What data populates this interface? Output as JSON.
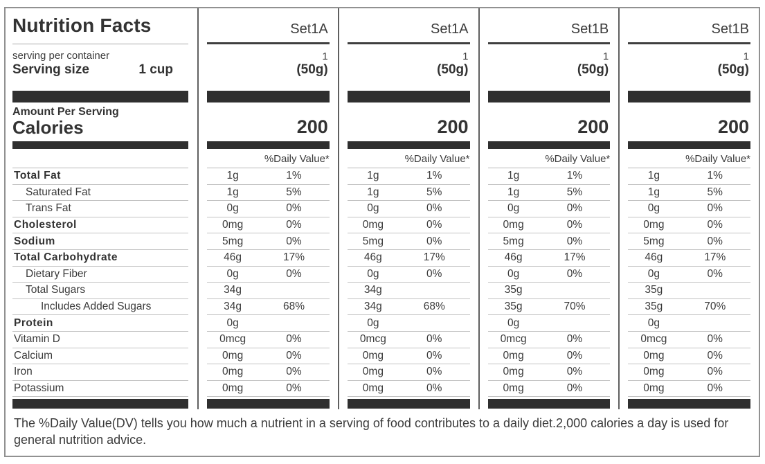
{
  "title": "Nutrition Facts",
  "serving": {
    "per_container_label": "serving per container",
    "size_label": "Serving size",
    "size_value": "1 cup"
  },
  "calories_section": {
    "amount_per_serving_label": "Amount Per Serving",
    "calories_label": "Calories"
  },
  "daily_value_header": "%Daily Value*",
  "row_labels": [
    {
      "label": "Total Fat",
      "style": "bold",
      "indent": 0
    },
    {
      "label": "Saturated  Fat",
      "style": "plain",
      "indent": 1
    },
    {
      "label": "Trans Fat",
      "style": "plain",
      "indent": 1
    },
    {
      "label": "Cholesterol",
      "style": "bold",
      "indent": 0
    },
    {
      "label": "Sodium",
      "style": "bold",
      "indent": 0
    },
    {
      "label": "Total Carbohydrate",
      "style": "bold",
      "indent": 0
    },
    {
      "label": "Dietary Fiber",
      "style": "plain",
      "indent": 1
    },
    {
      "label": "Total Sugars",
      "style": "plain",
      "indent": 1
    },
    {
      "label": "Includes Added Sugars",
      "style": "plain",
      "indent": 2
    },
    {
      "label": "Protein",
      "style": "bold",
      "indent": 0
    },
    {
      "label": "Vitamin D",
      "style": "plain",
      "indent": 0
    },
    {
      "label": "Calcium",
      "style": "plain",
      "indent": 0
    },
    {
      "label": "Iron",
      "style": "plain",
      "indent": 0
    },
    {
      "label": "Potassium",
      "style": "plain",
      "indent": 0
    }
  ],
  "columns": [
    {
      "name": "Set1A",
      "servings": "1",
      "serving_size": "(50g)",
      "calories": "200",
      "cells": [
        {
          "amount": "1g",
          "dv": "1%"
        },
        {
          "amount": "1g",
          "dv": "5%"
        },
        {
          "amount": "0g",
          "dv": "0%"
        },
        {
          "amount": "0mg",
          "dv": "0%"
        },
        {
          "amount": "5mg",
          "dv": "0%"
        },
        {
          "amount": "46g",
          "dv": "17%"
        },
        {
          "amount": "0g",
          "dv": "0%"
        },
        {
          "amount": "34g",
          "dv": ""
        },
        {
          "amount": "34g",
          "dv": "68%"
        },
        {
          "amount": "0g",
          "dv": ""
        },
        {
          "amount": "0mcg",
          "dv": "0%"
        },
        {
          "amount": "0mg",
          "dv": "0%"
        },
        {
          "amount": "0mg",
          "dv": "0%"
        },
        {
          "amount": "0mg",
          "dv": "0%"
        }
      ]
    },
    {
      "name": "Set1A",
      "servings": "1",
      "serving_size": "(50g)",
      "calories": "200",
      "cells": [
        {
          "amount": "1g",
          "dv": "1%"
        },
        {
          "amount": "1g",
          "dv": "5%"
        },
        {
          "amount": "0g",
          "dv": "0%"
        },
        {
          "amount": "0mg",
          "dv": "0%"
        },
        {
          "amount": "5mg",
          "dv": "0%"
        },
        {
          "amount": "46g",
          "dv": "17%"
        },
        {
          "amount": "0g",
          "dv": "0%"
        },
        {
          "amount": "34g",
          "dv": ""
        },
        {
          "amount": "34g",
          "dv": "68%"
        },
        {
          "amount": "0g",
          "dv": ""
        },
        {
          "amount": "0mcg",
          "dv": "0%"
        },
        {
          "amount": "0mg",
          "dv": "0%"
        },
        {
          "amount": "0mg",
          "dv": "0%"
        },
        {
          "amount": "0mg",
          "dv": "0%"
        }
      ]
    },
    {
      "name": "Set1B",
      "servings": "1",
      "serving_size": "(50g)",
      "calories": "200",
      "cells": [
        {
          "amount": "1g",
          "dv": "1%"
        },
        {
          "amount": "1g",
          "dv": "5%"
        },
        {
          "amount": "0g",
          "dv": "0%"
        },
        {
          "amount": "0mg",
          "dv": "0%"
        },
        {
          "amount": "5mg",
          "dv": "0%"
        },
        {
          "amount": "46g",
          "dv": "17%"
        },
        {
          "amount": "0g",
          "dv": "0%"
        },
        {
          "amount": "35g",
          "dv": ""
        },
        {
          "amount": "35g",
          "dv": "70%"
        },
        {
          "amount": "0g",
          "dv": ""
        },
        {
          "amount": "0mcg",
          "dv": "0%"
        },
        {
          "amount": "0mg",
          "dv": "0%"
        },
        {
          "amount": "0mg",
          "dv": "0%"
        },
        {
          "amount": "0mg",
          "dv": "0%"
        }
      ]
    },
    {
      "name": "Set1B",
      "servings": "1",
      "serving_size": "(50g)",
      "calories": "200",
      "cells": [
        {
          "amount": "1g",
          "dv": "1%"
        },
        {
          "amount": "1g",
          "dv": "5%"
        },
        {
          "amount": "0g",
          "dv": "0%"
        },
        {
          "amount": "0mg",
          "dv": "0%"
        },
        {
          "amount": "5mg",
          "dv": "0%"
        },
        {
          "amount": "46g",
          "dv": "17%"
        },
        {
          "amount": "0g",
          "dv": "0%"
        },
        {
          "amount": "35g",
          "dv": ""
        },
        {
          "amount": "35g",
          "dv": "70%"
        },
        {
          "amount": "0g",
          "dv": ""
        },
        {
          "amount": "0mcg",
          "dv": "0%"
        },
        {
          "amount": "0mg",
          "dv": "0%"
        },
        {
          "amount": "0mg",
          "dv": "0%"
        },
        {
          "amount": "0mg",
          "dv": "0%"
        }
      ]
    }
  ],
  "footnote": "The %Daily Value(DV) tells you how much a nutrient in a serving of food contributes to a daily diet.2,000 calories a day is used for general nutrition advice.",
  "colors": {
    "bar": "#2f2f2f",
    "text": "#3b3b3b",
    "divider": "#5f5f5f"
  }
}
